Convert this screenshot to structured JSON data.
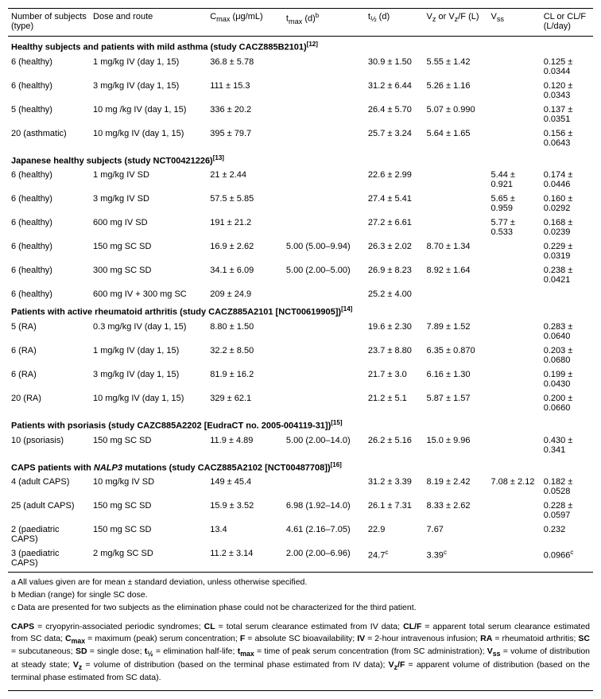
{
  "headers": [
    "Number of subjects (type)",
    "Dose and route",
    "C<sub>max</sub> (μg/mL)",
    "t<sub>max</sub> (d)<sup>b</sup>",
    "t<sub>½</sub> (d)",
    "V<sub>z</sub> or V<sub>z</sub>/F (L)",
    "V<sub>ss</sub>",
    "CL or CL/F (L/day)"
  ],
  "sections": [
    {
      "title": "Healthy subjects and patients with mild asthma (study CACZ885B2101)<sup>[12]</sup>",
      "rows": [
        [
          "6 (healthy)",
          "1 mg/kg IV (day 1, 15)",
          "36.8 ± 5.78",
          "",
          "30.9 ± 1.50",
          "5.55 ± 1.42",
          "",
          "0.125 ± 0.0344"
        ],
        [
          "6 (healthy)",
          "3 mg/kg IV (day 1, 15)",
          "111 ± 15.3",
          "",
          "31.2 ± 6.44",
          "5.26 ± 1.16",
          "",
          "0.120 ± 0.0343"
        ],
        [
          "5 (healthy)",
          "10 mg /kg IV (day 1, 15)",
          "336 ± 20.2",
          "",
          "26.4 ± 5.70",
          "5.07 ± 0.990",
          "",
          "0.137 ± 0.0351"
        ],
        [
          "20 (asthmatic)",
          "10 mg/kg IV (day 1, 15)",
          "395 ± 79.7",
          "",
          "25.7 ± 3.24",
          "5.64 ± 1.65",
          "",
          "0.156 ± 0.0643"
        ]
      ]
    },
    {
      "title": "Japanese healthy subjects (study NCT00421226)<sup>[13]</sup>",
      "rows": [
        [
          "6 (healthy)",
          "1 mg/kg IV SD",
          "21 ± 2.44",
          "",
          "22.6 ± 2.99",
          "",
          "5.44 ± 0.921",
          "0.174 ± 0.0446"
        ],
        [
          "6 (healthy)",
          "3 mg/kg IV SD",
          "57.5 ± 5.85",
          "",
          "27.4 ± 5.41",
          "",
          "5.65 ± 0.959",
          "0.160 ± 0.0292"
        ],
        [
          "6 (healthy)",
          "600 mg IV SD",
          "191 ± 21.2",
          "",
          "27.2 ± 6.61",
          "",
          "5.77 ± 0.533",
          "0.168 ± 0.0239"
        ],
        [
          "6 (healthy)",
          "150 mg SC SD",
          "16.9 ± 2.62",
          "5.00 (5.00–9.94)",
          "26.3 ± 2.02",
          "8.70 ± 1.34",
          "",
          "0.229 ± 0.0319"
        ],
        [
          "6 (healthy)",
          "300 mg SC SD",
          "34.1 ± 6.09",
          "5.00 (2.00–5.00)",
          "26.9 ± 8.23",
          "8.92 ± 1.64",
          "",
          "0.238 ± 0.0421"
        ],
        [
          "6 (healthy)",
          "600 mg IV + 300 mg SC",
          "209 ± 24.9",
          "",
          "25.2 ± 4.00",
          "",
          "",
          ""
        ]
      ]
    },
    {
      "title": "Patients with active rheumatoid arthritis (study CACZ885A2101 [NCT00619905])<sup>[14]</sup>",
      "rows": [
        [
          "5 (RA)",
          "0.3 mg/kg IV (day 1, 15)",
          "8.80 ± 1.50",
          "",
          "19.6 ± 2.30",
          "7.89 ± 1.52",
          "",
          "0.283 ± 0.0640"
        ],
        [
          "6 (RA)",
          "1 mg/kg IV (day 1, 15)",
          "32.2 ± 8.50",
          "",
          "23.7 ± 8.80",
          "6.35 ± 0.870",
          "",
          "0.203 ± 0.0680"
        ],
        [
          "6 (RA)",
          "3 mg/kg IV (day 1, 15)",
          "81.9 ± 16.2",
          "",
          "21.7 ± 3.0",
          "6.16 ± 1.30",
          "",
          "0.199 ± 0.0430"
        ],
        [
          "20 (RA)",
          "10 mg/kg IV (day 1, 15)",
          "329 ± 62.1",
          "",
          "21.2 ± 5.1",
          "5.87 ± 1.57",
          "",
          "0.200 ± 0.0660"
        ]
      ]
    },
    {
      "title": "Patients with psoriasis (study CAZC885A2202 [EudraCT no. 2005-004119-31])<sup>[15]</sup>",
      "rows": [
        [
          "10 (psoriasis)",
          "150 mg SC SD",
          "11.9 ± 4.89",
          "5.00 (2.00–14.0)",
          "26.2 ± 5.16",
          "15.0 ± 9.96",
          "",
          "0.430 ± 0.341"
        ]
      ]
    },
    {
      "title": "CAPS patients with <i>NALP3</i> mutations (study CACZ885A2102 [NCT00487708])<sup>[16]</sup>",
      "rows": [
        [
          "4 (adult CAPS)",
          "10 mg/kg IV SD",
          "149 ± 45.4",
          "",
          "31.2 ± 3.39",
          "8.19 ± 2.42",
          "7.08 ± 2.12",
          "0.182 ± 0.0528"
        ],
        [
          "25 (adult CAPS)",
          "150 mg SC SD",
          "15.9 ± 3.52",
          "6.98 (1.92–14.0)",
          "26.1 ± 7.31",
          "8.33 ± 2.62",
          "",
          "0.228 ± 0.0597"
        ],
        [
          "2 (paediatric CAPS)",
          "150 mg SC SD",
          "13.4",
          "4.61 (2.16–7.05)",
          "22.9",
          "7.67",
          "",
          "0.232"
        ],
        [
          "3 (paediatric CAPS)",
          "2 mg/kg SC SD",
          "11.2 ± 3.14",
          "2.00 (2.00–6.96)",
          "24.7<sup>c</sup>",
          "3.39<sup>c</sup>",
          "",
          "0.0966<sup>c</sup>"
        ]
      ]
    }
  ],
  "footnotes": [
    "a   All values given are for mean ± standard deviation, unless otherwise specified.",
    "b   Median (range) for single SC dose.",
    "c   Data are presented for two subjects as the elimination phase could not be characterized for the third patient."
  ],
  "abbrev": "<b>CAPS</b> = cryopyrin-associated periodic syndromes; <b>CL</b> = total serum clearance estimated from IV data; <b>CL/F</b> = apparent total serum clearance estimated from SC data; <b>C<sub>max</sub></b> = maximum (peak) serum concentration; <b>F</b> = absolute SC bioavailability; <b>IV</b> = 2-hour intravenous infusion; <b>RA</b> = rheumatoid arthritis; <b>SC</b> = subcutaneous; <b>SD</b> = single dose; <b>t<sub>½</sub></b> = elimination half-life; <b>t<sub>max</sub></b> = time of peak serum concentration (from SC administration); <b>V<sub>ss</sub></b> = volume of distribution at steady state; <b>V<sub>z</sub></b> = volume of distribution (based on the terminal phase estimated from IV data); <b>V<sub>z</sub>/F</b> = apparent volume of distribution (based on the terminal phase estimated from SC data)."
}
